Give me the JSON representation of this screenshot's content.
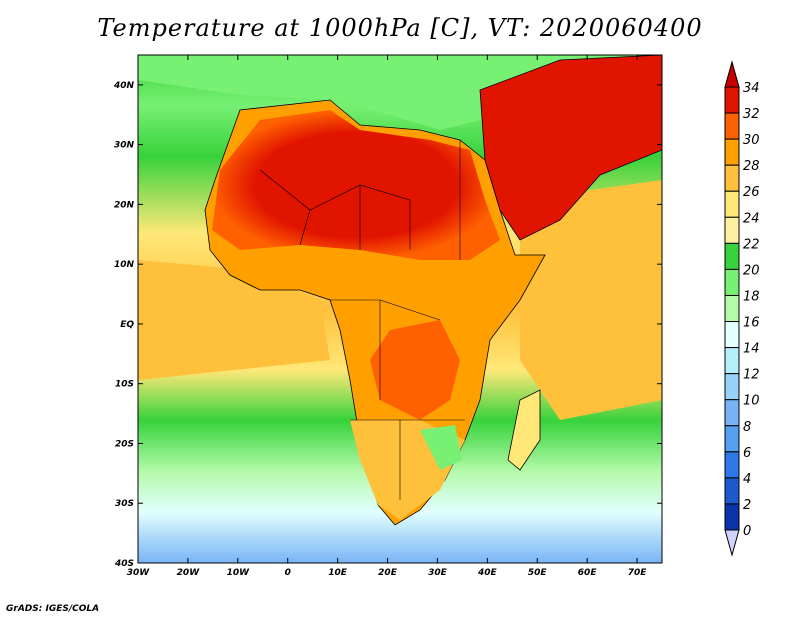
{
  "title": "Temperature at 1000hPa [C], VT: 2020060400",
  "credit": "GrADS: IGES/COLA",
  "map": {
    "lon_range": [
      -30,
      75
    ],
    "lat_range": [
      -40,
      45
    ],
    "lon_ticks": [
      "30W",
      "20W",
      "10W",
      "0",
      "10E",
      "20E",
      "30E",
      "40E",
      "50E",
      "60E",
      "70E"
    ],
    "lat_ticks": [
      "40N",
      "30N",
      "20N",
      "10N",
      "EQ",
      "10S",
      "20S",
      "30S",
      "40S"
    ],
    "ocean_color": "#64c864",
    "land_colors": {
      "sahara": "#e81e0a",
      "tropics": "#f0a02a",
      "south": "#f8c85a",
      "coast": "#a8e68c"
    }
  },
  "colorbar": {
    "levels": [
      "0",
      "2",
      "4",
      "6",
      "8",
      "10",
      "12",
      "14",
      "16",
      "18",
      "20",
      "22",
      "24",
      "26",
      "28",
      "30",
      "32",
      "34"
    ],
    "colors": [
      "#0a1464",
      "#0a32aa",
      "#1e5acd",
      "#2d78e6",
      "#55a0f0",
      "#78b4f5",
      "#96d2fa",
      "#b4f0fa",
      "#e1ffff",
      "#b4faaa",
      "#78f073",
      "#37d23c",
      "#fff0a0",
      "#ffe878",
      "#ffc03c",
      "#ffa000",
      "#ff6000",
      "#e11400"
    ],
    "under_color": "#d2d2fa",
    "over_color": "#c80000"
  }
}
